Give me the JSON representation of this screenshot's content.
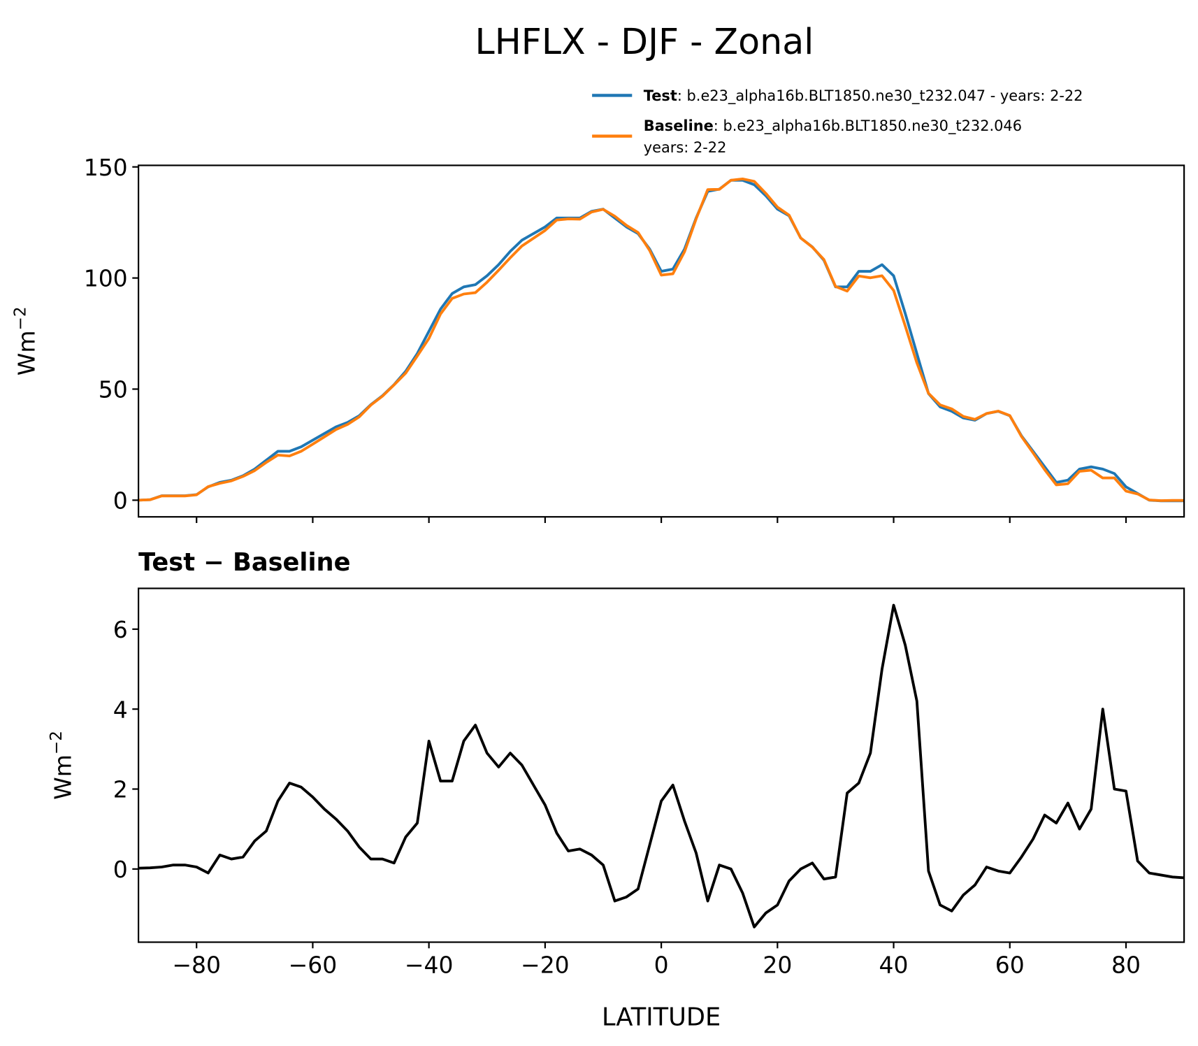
{
  "chart_data": [
    {
      "type": "line",
      "title": "LHFLX - DJF - Zonal",
      "x": [
        -90,
        -88,
        -86,
        -84,
        -82,
        -80,
        -78,
        -76,
        -74,
        -72,
        -70,
        -68,
        -66,
        -64,
        -62,
        -60,
        -58,
        -56,
        -54,
        -52,
        -50,
        -48,
        -46,
        -44,
        -42,
        -40,
        -38,
        -36,
        -34,
        -32,
        -30,
        -28,
        -26,
        -24,
        -22,
        -20,
        -18,
        -16,
        -14,
        -12,
        -10,
        -8,
        -6,
        -4,
        -2,
        0,
        2,
        4,
        6,
        8,
        10,
        12,
        14,
        16,
        18,
        20,
        22,
        24,
        26,
        28,
        30,
        32,
        34,
        36,
        38,
        40,
        42,
        44,
        46,
        48,
        50,
        52,
        54,
        56,
        58,
        60,
        62,
        64,
        66,
        68,
        70,
        72,
        74,
        76,
        78,
        80,
        82,
        84,
        86,
        88,
        90
      ],
      "series": [
        {
          "name": "Test",
          "legend_text": [
            ": b.e23_alpha16b.BLT1850.ne30_t232.047 - years: 2-22"
          ],
          "color": "#1f77b4",
          "values": [
            0,
            0.2,
            2,
            2,
            2,
            2.5,
            6,
            8,
            9,
            11,
            14,
            18,
            22,
            22,
            24,
            27,
            30,
            33,
            35,
            38,
            43,
            47,
            52,
            58,
            66,
            76,
            86,
            93,
            96,
            97,
            101,
            106,
            112,
            117,
            120,
            123,
            127,
            127,
            127,
            130,
            131,
            127,
            123,
            120,
            113,
            103,
            104,
            113,
            127,
            139,
            140,
            144,
            144,
            142,
            137,
            131,
            128,
            118,
            114,
            108,
            96,
            96,
            103,
            103,
            106,
            101,
            84,
            66,
            48,
            42,
            40,
            37,
            36,
            39,
            40,
            38,
            29,
            22,
            15,
            8,
            9,
            14,
            15,
            14,
            12,
            6,
            3,
            0,
            -0.3,
            -0.3,
            -0.3
          ]
        },
        {
          "name": "Baseline",
          "legend_text": [
            ": b.e23_alpha16b.BLT1850.ne30_t232.046",
            "years: 2-22"
          ],
          "color": "#ff7f0e",
          "values": [
            0,
            0.2,
            1.9,
            1.9,
            1.9,
            2.4,
            6.1,
            7.6,
            8.7,
            10.7,
            13.3,
            17,
            20.3,
            19.9,
            22,
            25.2,
            28.5,
            31.8,
            34.1,
            37.5,
            42.8,
            46.8,
            51.9,
            57.2,
            64.9,
            72.8,
            83.8,
            90.8,
            92.8,
            93.4,
            98.1,
            103.5,
            109.1,
            114.4,
            117.9,
            121.4,
            126.1,
            126.6,
            126.5,
            129.7,
            130.9,
            127.8,
            123.7,
            120.5,
            112.4,
            101.3,
            101.9,
            111.8,
            126.6,
            139.8,
            139.9,
            144,
            144.6,
            143.5,
            138.1,
            131.9,
            128.3,
            118,
            113.9,
            108.3,
            96.2,
            94.1,
            100.9,
            100.1,
            101,
            94.4,
            78.4,
            61.8,
            48.1,
            42.9,
            41.1,
            37.7,
            36.4,
            39,
            40.1,
            38.1,
            28.7,
            21.3,
            13.7,
            6.9,
            7.4,
            13,
            13.5,
            10,
            10,
            4.1,
            2.8,
            0.1,
            -0.2,
            -0.1,
            -0.1
          ]
        }
      ],
      "xlim": [
        -90,
        90
      ],
      "xticks": [
        -80,
        -60,
        -40,
        -20,
        0,
        20,
        40,
        60,
        80
      ],
      "ylim": [
        -7.5,
        150.7
      ],
      "yticks": [
        0,
        50,
        100,
        150
      ],
      "ylabel": {
        "base": "Wm",
        "sup": "−2"
      }
    },
    {
      "type": "line",
      "title": "Test − Baseline",
      "xlabel": "LATITUDE",
      "x": [
        -90,
        -88,
        -86,
        -84,
        -82,
        -80,
        -78,
        -76,
        -74,
        -72,
        -70,
        -68,
        -66,
        -64,
        -62,
        -60,
        -58,
        -56,
        -54,
        -52,
        -50,
        -48,
        -46,
        -44,
        -42,
        -40,
        -38,
        -36,
        -34,
        -32,
        -30,
        -28,
        -26,
        -24,
        -22,
        -20,
        -18,
        -16,
        -14,
        -12,
        -10,
        -8,
        -6,
        -4,
        -2,
        0,
        2,
        4,
        6,
        8,
        10,
        12,
        14,
        16,
        18,
        20,
        22,
        24,
        26,
        28,
        30,
        32,
        34,
        36,
        38,
        40,
        42,
        44,
        46,
        48,
        50,
        52,
        54,
        56,
        58,
        60,
        62,
        64,
        66,
        68,
        70,
        72,
        74,
        76,
        78,
        80,
        82,
        84,
        86,
        88,
        90
      ],
      "series": [
        {
          "color": "#000000",
          "values": [
            0.02,
            0.03,
            0.05,
            0.1,
            0.1,
            0.05,
            -0.1,
            0.35,
            0.25,
            0.3,
            0.7,
            0.95,
            1.7,
            2.15,
            2.05,
            1.8,
            1.5,
            1.25,
            0.95,
            0.55,
            0.25,
            0.25,
            0.15,
            0.8,
            1.15,
            3.2,
            2.2,
            2.2,
            3.2,
            3.6,
            2.9,
            2.55,
            2.9,
            2.6,
            2.1,
            1.6,
            0.9,
            0.45,
            0.5,
            0.35,
            0.1,
            -0.8,
            -0.7,
            -0.5,
            0.6,
            1.7,
            2.1,
            1.2,
            0.4,
            -0.8,
            0.1,
            0,
            -0.6,
            -1.45,
            -1.1,
            -0.9,
            -0.3,
            0,
            0.15,
            -0.25,
            -0.2,
            1.9,
            2.15,
            2.9,
            5,
            6.6,
            5.6,
            4.2,
            -0.05,
            -0.9,
            -1.05,
            -0.65,
            -0.4,
            0.05,
            -0.05,
            -0.1,
            0.3,
            0.75,
            1.35,
            1.15,
            1.65,
            1,
            1.5,
            4,
            2,
            1.95,
            0.2,
            -0.1,
            -0.15,
            -0.2,
            -0.22
          ]
        }
      ],
      "xlim": [
        -90,
        90
      ],
      "xticks": [
        {
          "value": -80,
          "label": "−80"
        },
        {
          "value": -60,
          "label": "−60"
        },
        {
          "value": -40,
          "label": "−40"
        },
        {
          "value": -20,
          "label": "−20"
        },
        0,
        20,
        40,
        60,
        80
      ],
      "ylim": [
        -1.83,
        7.02
      ],
      "yticks": [
        0,
        2,
        4,
        6
      ],
      "ylabel": {
        "base": "Wm",
        "sup": "−2"
      }
    }
  ]
}
